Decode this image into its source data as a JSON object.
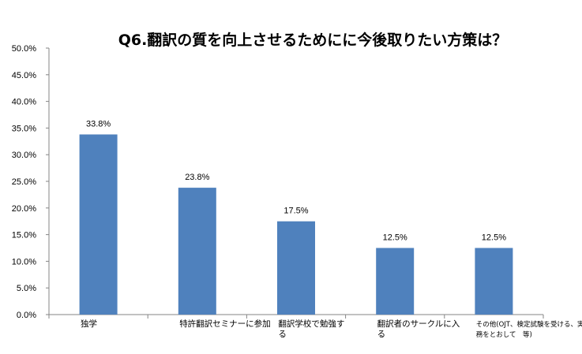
{
  "chart_data": {
    "type": "bar",
    "title": "Q6.翻訳の質を向上させるためにに今後取りたい方策は？",
    "categories": [
      [
        "独学"
      ],
      [
        "特許翻訳セミナーに参加"
      ],
      [
        "翻訳学校で勉強す",
        "る"
      ],
      [
        "翻訳者のサークルに入",
        "る"
      ],
      [
        "その他(OJT、検定試験を受ける、実",
        "務をとおして　等)"
      ]
    ],
    "values": [
      33.8,
      23.8,
      17.5,
      12.5,
      12.5
    ],
    "value_labels": [
      "33.8%",
      "23.8%",
      "17.5%",
      "12.5%",
      "12.5%"
    ],
    "y_ticks": [
      "0.0%",
      "5.0%",
      "10.0%",
      "15.0%",
      "20.0%",
      "25.0%",
      "30.0%",
      "35.0%",
      "40.0%",
      "45.0%",
      "50.0%"
    ],
    "ylim": [
      0,
      50
    ],
    "xlabel": "",
    "ylabel": "",
    "bar_color": "#4f81bd",
    "axis_color": "#868686",
    "grid": false,
    "legend": "none"
  }
}
